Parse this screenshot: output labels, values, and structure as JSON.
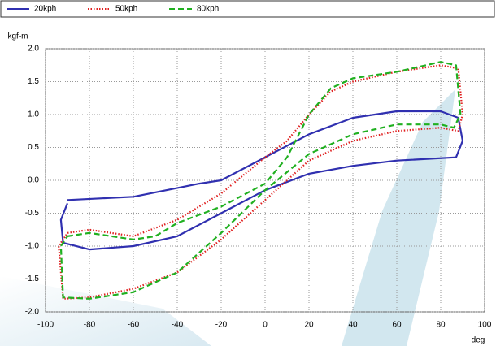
{
  "chart_data": {
    "type": "line",
    "y_label": "kgf-m",
    "x_label": "deg",
    "xlim": [
      -100,
      100
    ],
    "xticks": [
      -100,
      -80,
      -60,
      -40,
      -20,
      0,
      20,
      40,
      60,
      80,
      100
    ],
    "ylim": [
      -2.0,
      2.0
    ],
    "yticks": [
      {
        "value": 2.0,
        "label": "2.0"
      },
      1.5,
      {
        "value": 1.0,
        "label": "1.0"
      },
      0.5,
      {
        "value": 0.0,
        "label": "0.0"
      },
      -0.5,
      {
        "value": -1.0,
        "label": "-1.0"
      },
      -1.5,
      {
        "value": -2.0,
        "label": "-2.0"
      }
    ],
    "grid": true,
    "legend": "top",
    "series": [
      {
        "name": "20kph",
        "color": "#3030b0",
        "line_style": "solid",
        "x": [
          -90,
          -60,
          -30,
          -20,
          0,
          20,
          40,
          60,
          80,
          88,
          90,
          87,
          60,
          40,
          20,
          0,
          -20,
          -40,
          -60,
          -80,
          -92,
          -93,
          -90
        ],
        "values": [
          -0.3,
          -0.25,
          -0.05,
          0.0,
          0.35,
          0.7,
          0.95,
          1.05,
          1.05,
          0.95,
          0.6,
          0.35,
          0.3,
          0.22,
          0.1,
          -0.15,
          -0.5,
          -0.85,
          -1.0,
          -1.05,
          -0.95,
          -0.6,
          -0.35
        ]
      },
      {
        "name": "50kph",
        "color": "#e02020",
        "line_style": "dotted",
        "x": [
          -90,
          -80,
          -60,
          -40,
          -20,
          0,
          10,
          20,
          30,
          40,
          60,
          80,
          88,
          90,
          88,
          80,
          60,
          40,
          20,
          0,
          -20,
          -40,
          -60,
          -80,
          -92,
          -94,
          -90
        ],
        "values": [
          -0.8,
          -0.75,
          -0.85,
          -0.6,
          -0.2,
          0.35,
          0.6,
          1.0,
          1.35,
          1.5,
          1.65,
          1.75,
          1.7,
          1.0,
          0.75,
          0.8,
          0.75,
          0.6,
          0.3,
          -0.3,
          -0.9,
          -1.4,
          -1.65,
          -1.78,
          -1.8,
          -1.0,
          -0.8
        ]
      },
      {
        "name": "80kph",
        "color": "#20b020",
        "line_style": "dashed",
        "x": [
          -90,
          -80,
          -60,
          -50,
          -40,
          -20,
          0,
          10,
          20,
          30,
          40,
          60,
          80,
          87,
          89,
          86,
          80,
          60,
          40,
          20,
          0,
          -20,
          -40,
          -60,
          -80,
          -92,
          -93,
          -90
        ],
        "values": [
          -0.85,
          -0.8,
          -0.9,
          -0.85,
          -0.65,
          -0.4,
          -0.05,
          0.35,
          1.0,
          1.4,
          1.55,
          1.65,
          1.8,
          1.75,
          1.0,
          0.8,
          0.85,
          0.85,
          0.7,
          0.4,
          -0.15,
          -0.8,
          -1.4,
          -1.7,
          -1.8,
          -1.78,
          -1.0,
          -0.85
        ]
      }
    ]
  }
}
